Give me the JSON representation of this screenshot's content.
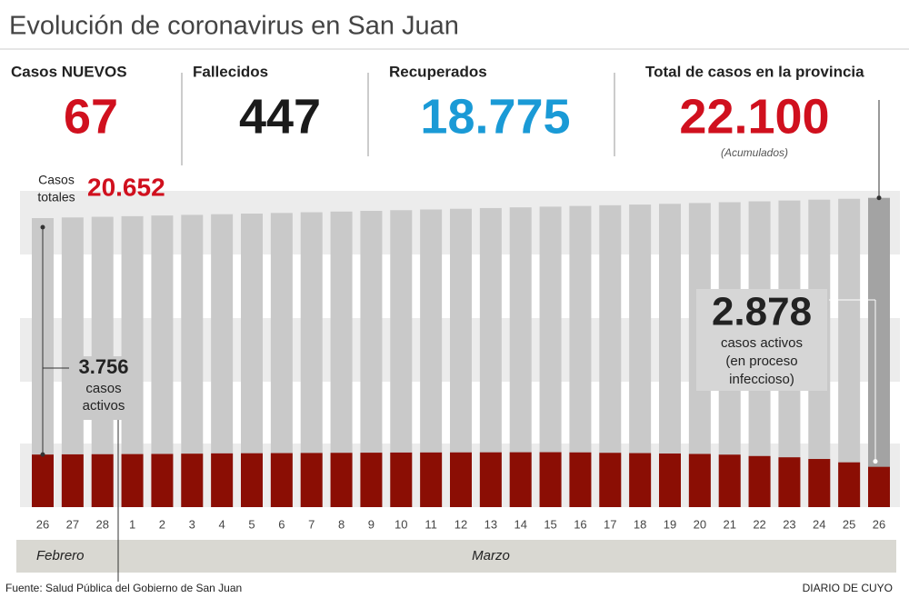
{
  "header": {
    "title": "Evolución de coronavirus en San Juan",
    "stats": [
      {
        "label": "Casos NUEVOS",
        "value": "67",
        "color": "#d0101e"
      },
      {
        "label": "Fallecidos",
        "value": "447",
        "color": "#1a1a1a"
      },
      {
        "label": "Recuperados",
        "value": "18.775",
        "color": "#1a9ad6"
      },
      {
        "label": "Total de casos en la provincia",
        "value": "22.100",
        "color": "#d0101e",
        "note": "(Acumulados)"
      }
    ]
  },
  "chart_data": {
    "type": "bar",
    "categories": [
      "26",
      "27",
      "28",
      "1",
      "2",
      "3",
      "4",
      "5",
      "6",
      "7",
      "8",
      "9",
      "10",
      "11",
      "12",
      "13",
      "14",
      "15",
      "16",
      "17",
      "18",
      "19",
      "20",
      "21",
      "22",
      "23",
      "24",
      "25",
      "26"
    ],
    "series": [
      {
        "name": "Casos totales",
        "color": "#c9c9c9",
        "highlight_color": "#a3a3a3",
        "values": [
          20652,
          20700,
          20745,
          20790,
          20838,
          20885,
          20930,
          20975,
          21020,
          21070,
          21120,
          21170,
          21220,
          21270,
          21320,
          21370,
          21420,
          21470,
          21520,
          21570,
          21620,
          21675,
          21730,
          21790,
          21850,
          21910,
          21970,
          22033,
          22100
        ]
      },
      {
        "name": "casos activos",
        "color": "#8b0e04",
        "values": [
          3756,
          3770,
          3780,
          3790,
          3800,
          3820,
          3840,
          3850,
          3860,
          3870,
          3880,
          3890,
          3900,
          3905,
          3910,
          3915,
          3920,
          3925,
          3910,
          3880,
          3860,
          3830,
          3800,
          3750,
          3650,
          3560,
          3440,
          3200,
          2878
        ]
      }
    ],
    "ylim": [
      0,
      22600
    ],
    "annotations": {
      "totals_label": [
        "Casos",
        "totales"
      ],
      "totals_value": "20.652",
      "start_active_value": "3.756",
      "start_active_label": [
        "casos",
        "activos"
      ],
      "end_active_value": "2.878",
      "end_active_label": [
        "casos activos",
        "(en proceso",
        "infeccioso)"
      ]
    },
    "months": [
      "Febrero",
      "Marzo"
    ]
  },
  "footer": {
    "source": "Fuente: Salud Pública del Gobierno de San Juan",
    "brand": "DIARIO DE CUYO"
  }
}
